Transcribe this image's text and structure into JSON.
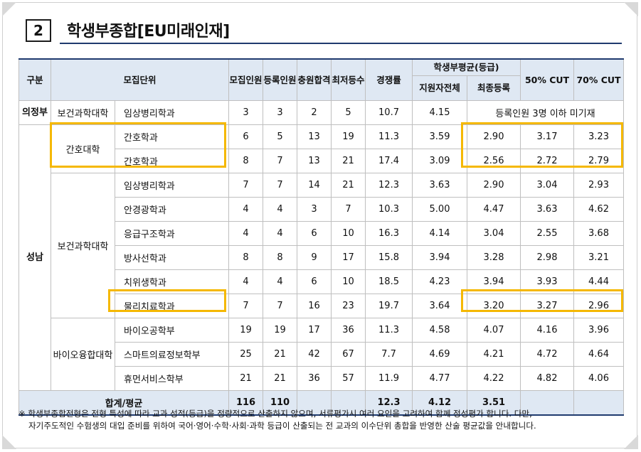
{
  "heading": {
    "number": "2",
    "title": "학생부종합[EU미래인재]"
  },
  "table": {
    "headers": {
      "gubun": "구분",
      "unit": "모집단위",
      "recruit": "모집인원",
      "enrolled": "등록인원",
      "filled": "충원합격",
      "last_rank": "최저등수",
      "competition": "경쟁률",
      "avg_group": "학생부평균(등급)",
      "applicant_all": "지원자전체",
      "final_enrolled": "최종등록",
      "cut50": "50% CUT",
      "cut70": "70% CUT"
    },
    "campus": [
      "의정부",
      "성남"
    ],
    "colleges": [
      "보건과학대학",
      "간호대학",
      "보건과학대학",
      "바이오융합대학"
    ],
    "rows": [
      {
        "unit": "임상병리학과",
        "recruit": "3",
        "enrolled": "3",
        "filled": "2",
        "last": "5",
        "comp": "10.7",
        "avg": "4.15",
        "merged_note": "등록인원 3명 이하 미기재"
      },
      {
        "unit": "간호학과",
        "recruit": "6",
        "enrolled": "5",
        "filled": "13",
        "last": "19",
        "comp": "11.3",
        "avg": "3.59",
        "final": "2.90",
        "c50": "3.17",
        "c70": "3.23"
      },
      {
        "unit": "간호학과",
        "recruit": "8",
        "enrolled": "7",
        "filled": "13",
        "last": "21",
        "comp": "17.4",
        "avg": "3.09",
        "final": "2.56",
        "c50": "2.72",
        "c70": "2.79"
      },
      {
        "unit": "임상병리학과",
        "recruit": "7",
        "enrolled": "7",
        "filled": "14",
        "last": "21",
        "comp": "12.3",
        "avg": "3.63",
        "final": "2.90",
        "c50": "3.04",
        "c70": "2.93"
      },
      {
        "unit": "안경광학과",
        "recruit": "4",
        "enrolled": "4",
        "filled": "3",
        "last": "7",
        "comp": "10.3",
        "avg": "5.00",
        "final": "4.47",
        "c50": "3.63",
        "c70": "4.62"
      },
      {
        "unit": "응급구조학과",
        "recruit": "4",
        "enrolled": "4",
        "filled": "6",
        "last": "10",
        "comp": "16.3",
        "avg": "4.14",
        "final": "3.04",
        "c50": "2.55",
        "c70": "3.68"
      },
      {
        "unit": "방사선학과",
        "recruit": "8",
        "enrolled": "8",
        "filled": "9",
        "last": "17",
        "comp": "15.8",
        "avg": "3.94",
        "final": "3.28",
        "c50": "2.98",
        "c70": "3.21"
      },
      {
        "unit": "치위생학과",
        "recruit": "4",
        "enrolled": "4",
        "filled": "6",
        "last": "10",
        "comp": "18.5",
        "avg": "4.23",
        "final": "3.94",
        "c50": "3.93",
        "c70": "4.44"
      },
      {
        "unit": "물리치료학과",
        "recruit": "7",
        "enrolled": "7",
        "filled": "16",
        "last": "23",
        "comp": "19.7",
        "avg": "3.64",
        "final": "3.20",
        "c50": "3.27",
        "c70": "2.96"
      },
      {
        "unit": "바이오공학부",
        "recruit": "19",
        "enrolled": "19",
        "filled": "17",
        "last": "36",
        "comp": "11.3",
        "avg": "4.58",
        "final": "4.07",
        "c50": "4.16",
        "c70": "3.96"
      },
      {
        "unit": "스마트의료정보학부",
        "recruit": "25",
        "enrolled": "21",
        "filled": "42",
        "last": "67",
        "comp": "7.7",
        "avg": "4.69",
        "final": "4.21",
        "c50": "4.72",
        "c70": "4.64"
      },
      {
        "unit": "휴먼서비스학부",
        "recruit": "21",
        "enrolled": "21",
        "filled": "36",
        "last": "57",
        "comp": "11.9",
        "avg": "4.77",
        "final": "4.22",
        "c50": "4.82",
        "c70": "4.06"
      }
    ],
    "summary": {
      "label": "합계/평균",
      "recruit": "116",
      "enrolled": "110",
      "comp": "12.3",
      "avg": "4.12",
      "final": "3.51"
    }
  },
  "note": {
    "line1": "※ 학생부종합전형은 전형 특성에 따라 교과 성적(등급)을 정량적으로 산출하지 않으며, 서류평가시 여러 요인을 고려하여 함께 정성평가 합니다. 다만,",
    "line2": "자기주도적인 수험생의 대입 준비를 위하여 국어·영어·수학·사회·과학 등급이 산출되는 전 교과의 이수단위 총합을 반영한 산술 평균값을 안내합니다."
  },
  "colors": {
    "accent": "#1f3a6e",
    "header_bg": "#dfe8f3",
    "highlight": "#f5b800"
  }
}
